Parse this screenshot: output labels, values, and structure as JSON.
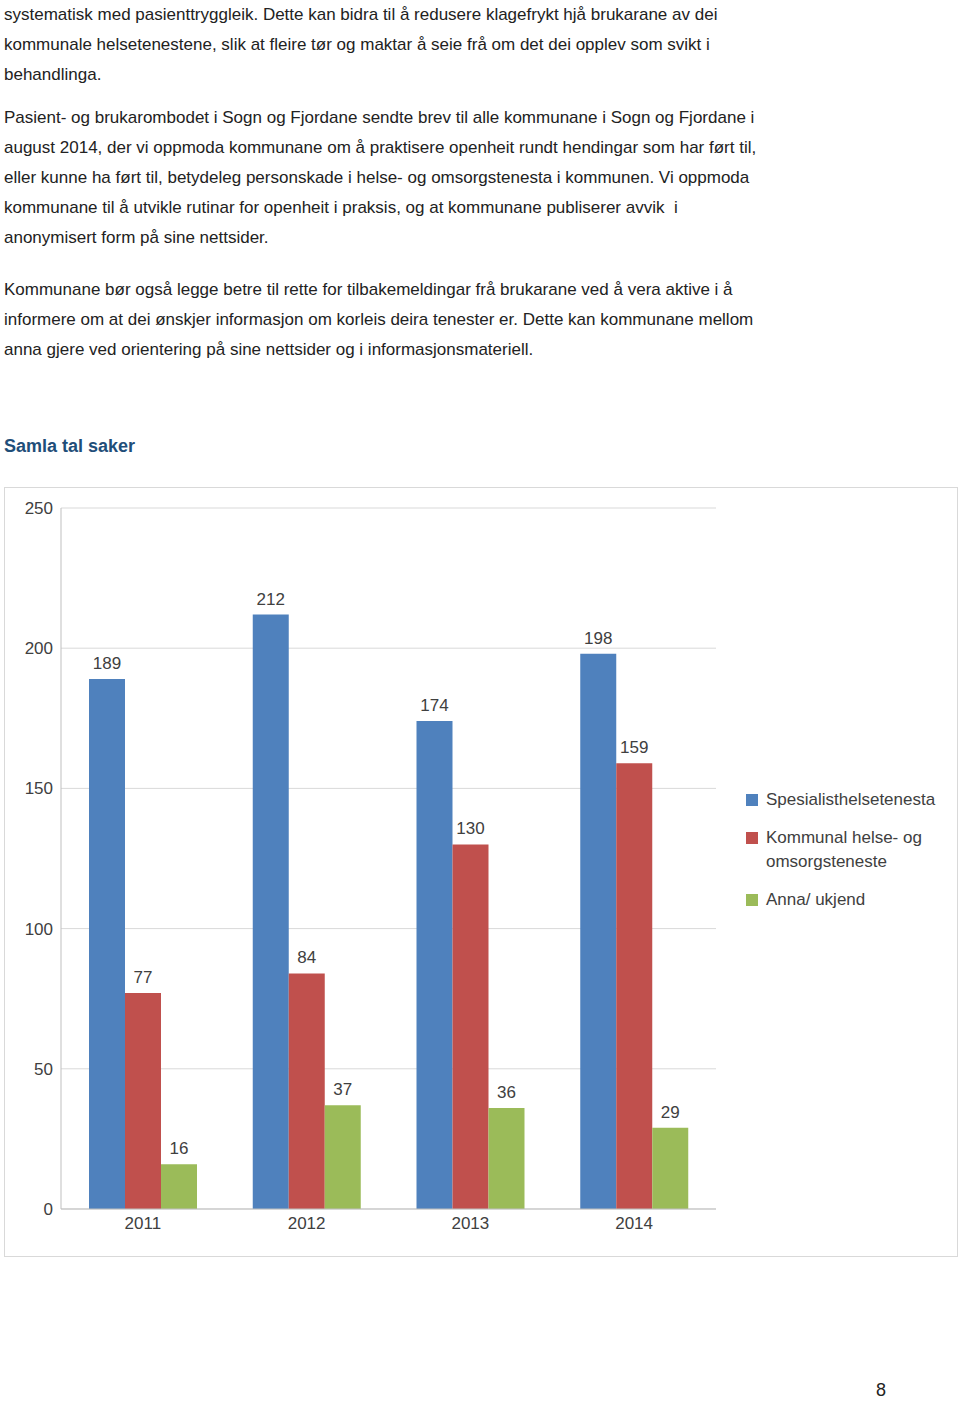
{
  "paragraphs": [
    [
      "systematisk med pasienttryggleik. Dette kan bidra til å redusere klagefrykt hjå brukarane av dei",
      "kommunale helsetenestene, slik at fleire tør og maktar å seie frå om det dei opplev som svikt i",
      "behandlinga."
    ],
    [
      "Pasient- og brukarombodet i Sogn og Fjordane sendte brev til alle kommunane i Sogn og Fjordane i",
      "august 2014, der vi oppmoda kommunane om å praktisere openheit rundt hendingar som har ført til,",
      "eller kunne ha ført til, betydeleg personskade i helse- og omsorgstenesta i kommunen. Vi oppmoda",
      "kommunane til å utvikle rutinar for openheit i praksis, og at kommunane publiserer avvik  i",
      "anonymisert form på sine nettsider."
    ],
    [
      "Kommunane bør også legge betre til rette for tilbakemeldingar frå brukarane ved å vera aktive i å",
      "informere om at dei ønskjer informasjon om korleis deira tenester er. Dette kan kommunane mellom",
      "anna gjere ved orientering på sine nettsider og i informasjonsmateriell."
    ]
  ],
  "chart_data": {
    "type": "bar",
    "title": "Samla tal saker",
    "categories": [
      "2011",
      "2012",
      "2013",
      "2014"
    ],
    "series": [
      {
        "name": "Spesialisthelsetenesta",
        "color": "#4f81bd",
        "values": [
          189,
          212,
          174,
          198
        ]
      },
      {
        "name": "Kommunal helse- og omsorgsteneste",
        "color": "#c0504d",
        "values": [
          77,
          84,
          130,
          159
        ]
      },
      {
        "name": "Anna/ ukjend",
        "color": "#9bbb59",
        "values": [
          16,
          37,
          36,
          29
        ]
      }
    ],
    "ylim": [
      0,
      250
    ],
    "yticks": [
      0,
      50,
      100,
      150,
      200,
      250
    ],
    "grid": true,
    "data_labels": true,
    "legend": "right"
  },
  "page_number": "8"
}
